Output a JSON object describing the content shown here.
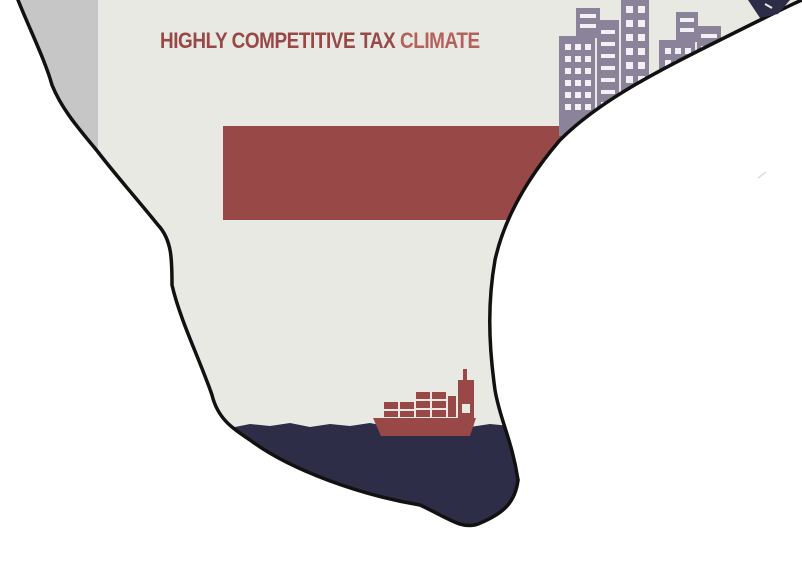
{
  "headline": {
    "part1": "HIGHLY COMPETITIVE TAX",
    "part2": "CLIMATE"
  },
  "colors": {
    "background": "#ffffff",
    "land": "#e9e9e3",
    "land_shade": "#c6c6c6",
    "outline": "#111111",
    "accent_red": "#984846",
    "accent_red_light": "#b5605c",
    "water": "#2d2d47",
    "buildings": "#8a8399",
    "windows": "#f2f0f4"
  },
  "icons": [
    "city-skyline-icon",
    "cargo-ship-icon",
    "flag-icon"
  ]
}
